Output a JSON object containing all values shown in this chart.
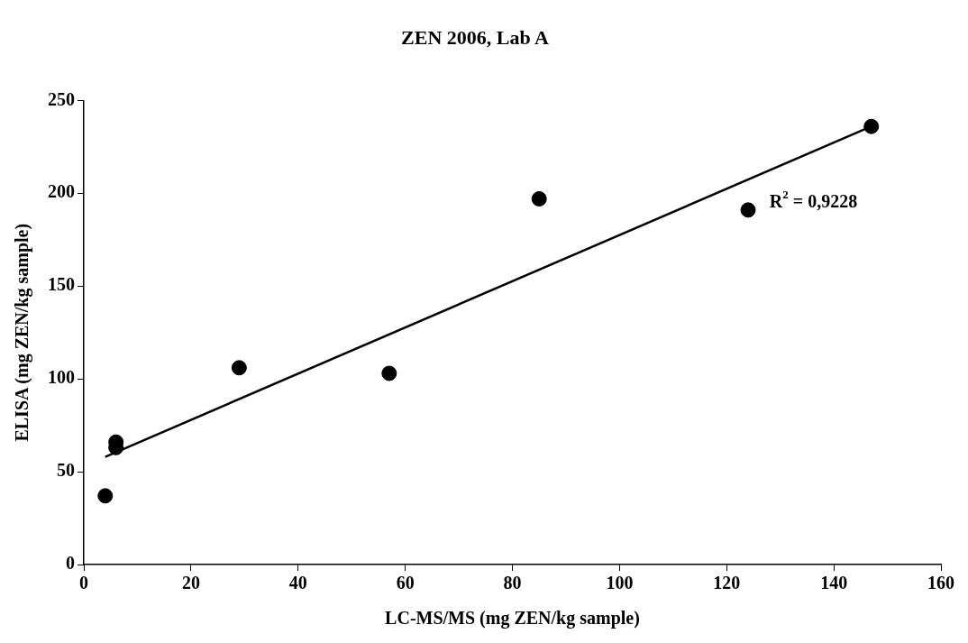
{
  "chart_data": {
    "type": "scatter",
    "title": "ZEN 2006, Lab A",
    "xlabel": "LC-MS/MS (mg ZEN/kg sample)",
    "ylabel": "ELISA (mg ZEN/kg sample)",
    "x": [
      4,
      6,
      6,
      29,
      57,
      85,
      124,
      147
    ],
    "series": [
      {
        "color": "#000000",
        "values": [
          37,
          66,
          63,
          106,
          103,
          197,
          191,
          236
        ]
      },
      {
        "type": "line",
        "color": "#000000",
        "marker": "none",
        "x": [
          4,
          147
        ],
        "values": [
          58,
          236
        ]
      }
    ],
    "xlim": [
      0,
      160
    ],
    "xticks": [
      0,
      20,
      40,
      60,
      80,
      100,
      120,
      140,
      160
    ],
    "ylim": [
      0,
      250
    ],
    "yticks": [
      0,
      50,
      100,
      150,
      200,
      250
    ],
    "grid": false,
    "legend": false,
    "marker": "circle",
    "line_style": "solid",
    "annotations": [
      "R$^{2}$ = 0,9228"
    ]
  }
}
